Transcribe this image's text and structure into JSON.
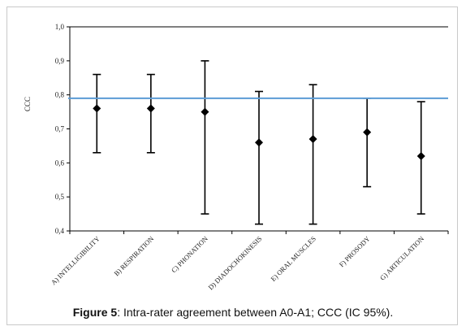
{
  "caption": {
    "label": "Figure 5",
    "text": ": Intra-rater agreement between A0-A1; CCC (IC 95%)."
  },
  "chart_data": {
    "type": "scatter",
    "ylabel": "CCC",
    "ylim": [
      0.4,
      1.0
    ],
    "yticks": [
      "0,4",
      "0,5",
      "0,6",
      "0,7",
      "0,8",
      "0,9",
      "1,0"
    ],
    "categories": [
      "A) INTELLIGIBILITY",
      "B) RESPIRATION",
      "C) PHONATION",
      "D) DIADOCHOKINESIS",
      "E) ORAL MUSCLES",
      "F) PROSODY",
      "G) ARTICULATION"
    ],
    "values": [
      0.76,
      0.76,
      0.75,
      0.66,
      0.67,
      0.69,
      0.62
    ],
    "lower": [
      0.63,
      0.63,
      0.45,
      0.42,
      0.42,
      0.53,
      0.45
    ],
    "upper": [
      0.86,
      0.86,
      0.9,
      0.81,
      0.83,
      0.79,
      0.78
    ],
    "reference_line": 0.79,
    "gridline_top": 1.0,
    "colors": {
      "marker": "#000000",
      "reference": "#5b9bd5",
      "axis": "#000000"
    }
  }
}
